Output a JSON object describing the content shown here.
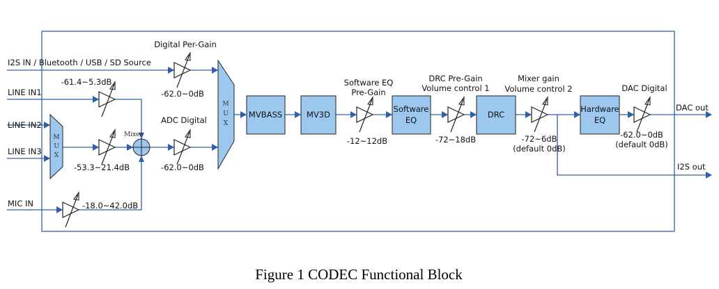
{
  "colors": {
    "wire": "#2e5fa8",
    "block_fill": "#9cc8f0",
    "frame": "#4a78b8"
  },
  "inputs": {
    "i2s": "I2S IN / Bluetooth / USB / SD Source",
    "line1": "LINE IN1",
    "line2": "LINE IN2",
    "line3": "LINE IN3",
    "mic": "MIC IN"
  },
  "mux_letters": [
    "M",
    "U",
    "X"
  ],
  "mixer_label": "Mixer",
  "gains": {
    "digital_pre_title": "Digital Per-Gain",
    "digital_pre_range": "-62.0~0dB",
    "line1_range": "-61.4~5.3dB",
    "line23_range": "-53.3~21.4dB",
    "adc_title": "ADC Digital",
    "adc_range": "-62.0~0dB",
    "mic_range": "-18.0~42.0dB",
    "sweq_title1": "Software EQ",
    "sweq_title2": "Pre-Gain",
    "sweq_range": "-12~12dB",
    "drc_title1": "DRC Pre-Gain",
    "drc_title2": "Volume control 1",
    "drc_range": "-72~18dB",
    "mix_title1": "Mixer gain",
    "mix_title2": "Volume control 2",
    "mix_range": "-72~6dB",
    "mix_default": "(default 0dB)",
    "dac_title": "DAC Digital",
    "dac_range": "-62.0~0dB",
    "dac_default": "(default 0dB)"
  },
  "blocks": {
    "mvbass": "MVBASS",
    "mv3d": "MV3D",
    "sweq1": "Software",
    "sweq2": "EQ",
    "drc": "DRC",
    "hweq1": "Hardware",
    "hweq2": "EQ"
  },
  "outputs": {
    "dac": "DAC out",
    "i2s": "I2S out"
  },
  "caption": "Figure 1 CODEC Functional Block"
}
